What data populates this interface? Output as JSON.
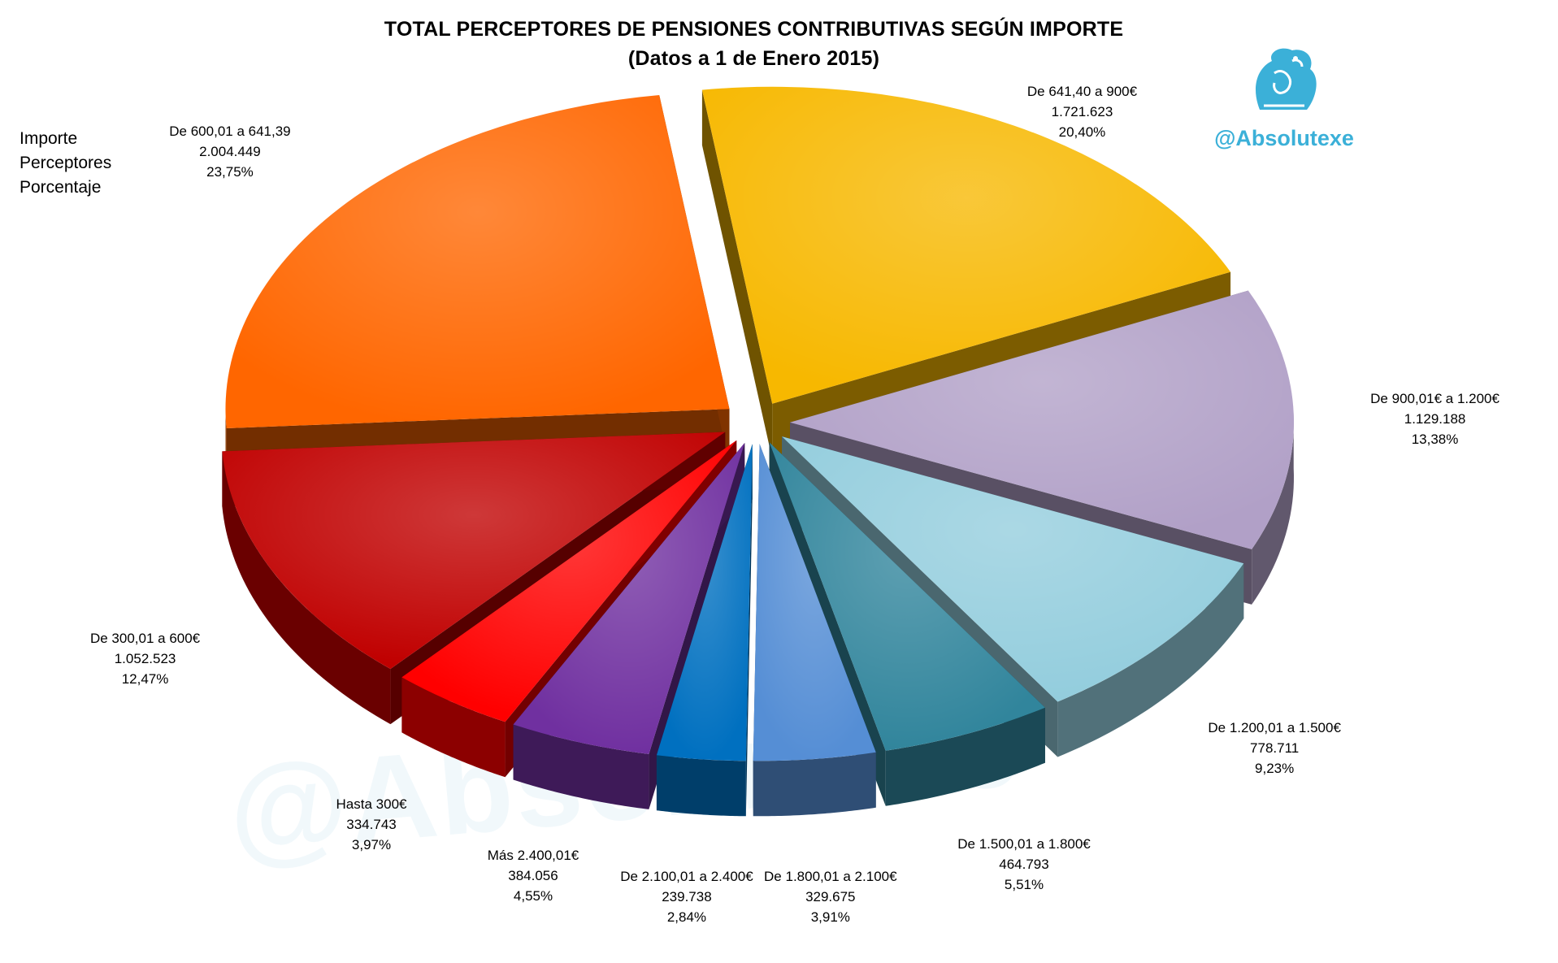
{
  "title_line1": "TOTAL PERCEPTORES  DE PENSIONES CONTRIBUTIVAS SEGÚN IMPORTE",
  "title_line2": "(Datos a 1 de Enero 2015)",
  "legend_lines": [
    "Importe",
    "Perceptores",
    "Porcentaje"
  ],
  "brand": {
    "handle": "@Absolutexe",
    "watermark": "@Absolutexe",
    "logo_icon": "griffin-logo-icon",
    "color": "#3bb0d8"
  },
  "chart_data": {
    "type": "pie",
    "style": "3d-exploded",
    "slices": [
      {
        "label": "De 641,40 a 900€",
        "value_text": "1.721.623",
        "value": 1721623,
        "percent_text": "20,40%",
        "percent": 20.4,
        "color": "#f7b800"
      },
      {
        "label": "De 900,01€ a 1.200€",
        "value_text": "1.129.188",
        "value": 1129188,
        "percent_text": "13,38%",
        "percent": 13.38,
        "color": "#b1a0c7"
      },
      {
        "label": "De 1.200,01 a 1.500€",
        "value_text": "778.711",
        "value": 778711,
        "percent_text": "9,23%",
        "percent": 9.23,
        "color": "#93cddd"
      },
      {
        "label": "De 1.500,01 a 1.800€",
        "value_text": "464.793",
        "value": 464793,
        "percent_text": "5,51%",
        "percent": 5.51,
        "color": "#31859c"
      },
      {
        "label": "De 1.800,01 a 2.100€",
        "value_text": "329.675",
        "value": 329675,
        "percent_text": "3,91%",
        "percent": 3.91,
        "color": "#558ed5"
      },
      {
        "label": "De 2.100,01 a 2.400€",
        "value_text": "239.738",
        "value": 239738,
        "percent_text": "2,84%",
        "percent": 2.84,
        "color": "#0070c0"
      },
      {
        "label": "Más 2.400,01€",
        "value_text": "384.056",
        "value": 384056,
        "percent_text": "4,55%",
        "percent": 4.55,
        "color": "#7030a0"
      },
      {
        "label": "Hasta 300€",
        "value_text": "334.743",
        "value": 334743,
        "percent_text": "3,97%",
        "percent": 3.97,
        "color": "#ff0000"
      },
      {
        "label": "De 300,01 a 600€",
        "value_text": "1.052.523",
        "value": 1052523,
        "percent_text": "12,47%",
        "percent": 12.47,
        "color": "#c00000"
      },
      {
        "label": "De 600,01 a 641,39",
        "value_text": "2.004.449",
        "value": 2004449,
        "percent_text": "23,75%",
        "percent": 23.75,
        "color": "#ff6600"
      }
    ]
  }
}
